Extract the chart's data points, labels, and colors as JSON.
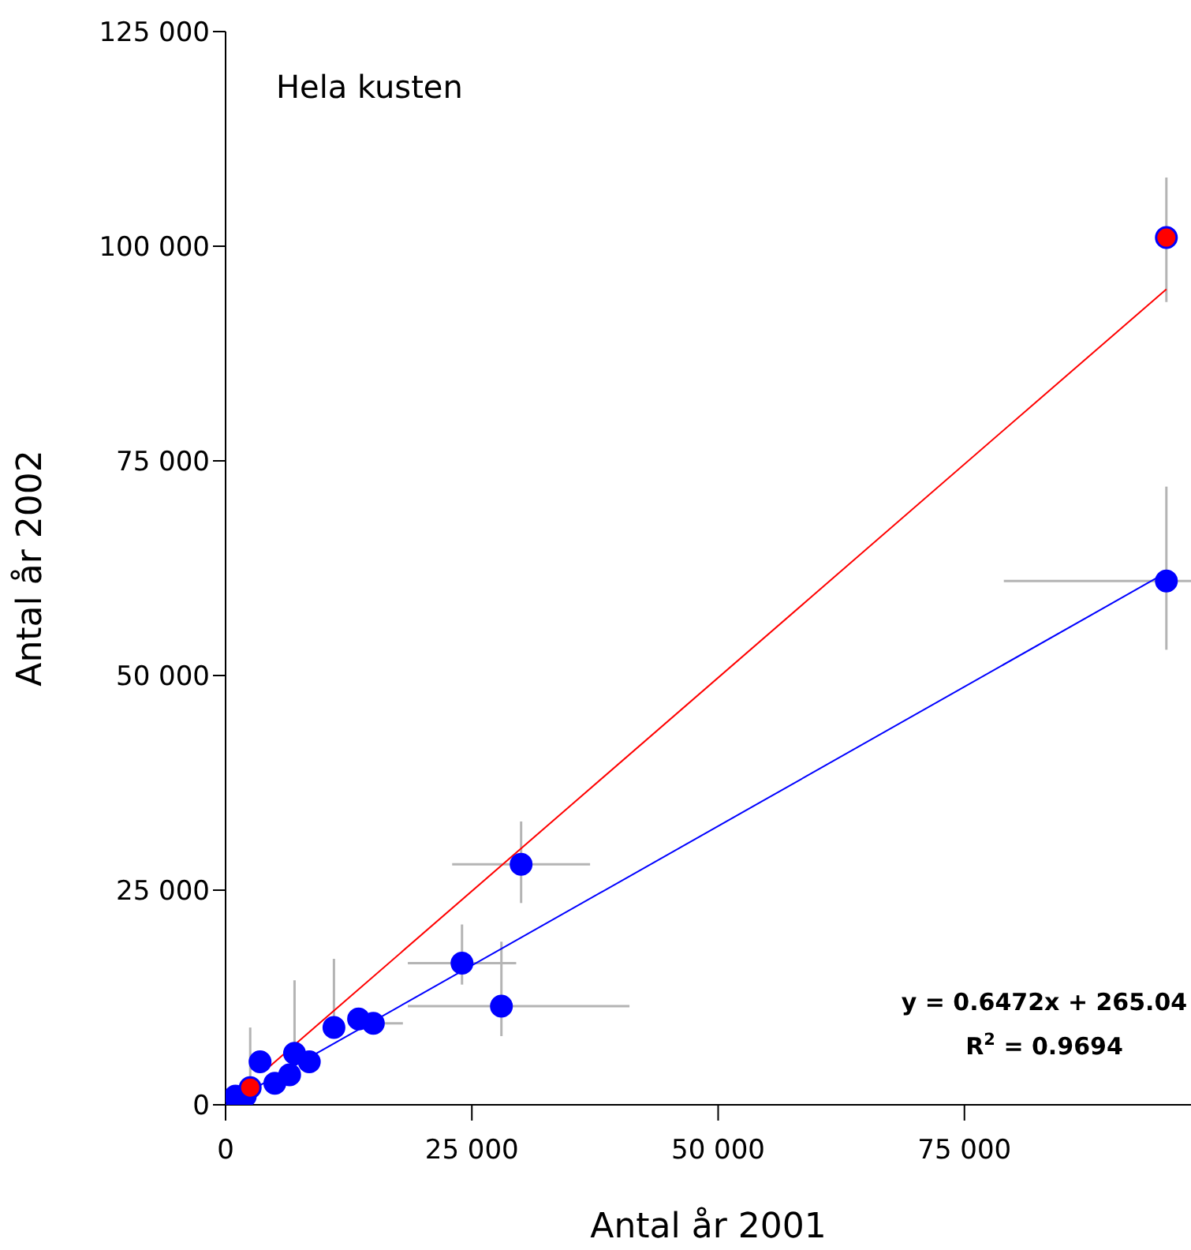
{
  "chart_data": {
    "type": "scatter",
    "title": "Hela kusten",
    "xlabel": "Antal år 2001",
    "ylabel": "Antal år 2002",
    "xlim": [
      0,
      98000
    ],
    "xticks": [
      {
        "value": 0,
        "label": "0"
      },
      {
        "value": 25000,
        "label": "25 000"
      },
      {
        "value": 50000,
        "label": "50 000"
      },
      {
        "value": 75000,
        "label": "75 000"
      }
    ],
    "ylim": [
      0,
      125000
    ],
    "yticks": [
      {
        "value": 0,
        "label": "0"
      },
      {
        "value": 25000,
        "label": "25 000"
      },
      {
        "value": 50000,
        "label": "50 000"
      },
      {
        "value": 75000,
        "label": "75 000"
      },
      {
        "value": 100000,
        "label": "100 000"
      },
      {
        "value": 125000,
        "label": "125 000"
      }
    ],
    "marker": "circle",
    "series": [
      {
        "type": "line",
        "color": "#ff0000",
        "marker": "none",
        "x": [
          4000,
          95500
        ],
        "values": [
          4000,
          95000
        ]
      },
      {
        "type": "line",
        "color": "#0000ff",
        "marker": "none",
        "x": [
          0,
          95500
        ],
        "values": [
          0,
          62000
        ]
      },
      {
        "color": "#0000ff",
        "x": [
          95500,
          30000,
          24000,
          28000,
          15000,
          13500,
          11000,
          7000,
          8500,
          6500,
          5000,
          3500,
          1000,
          2000
        ],
        "values": [
          61000,
          28000,
          16500,
          11500,
          9500,
          10000,
          9000,
          6000,
          5000,
          3500,
          2500,
          5000,
          1000,
          1000
        ],
        "errors": [
          [
            53000,
            72000
          ],
          [
            23500,
            33000
          ],
          [
            14000,
            21000
          ],
          [
            8000,
            19000
          ],
          null,
          null,
          [
            9000,
            17000
          ],
          [
            6000,
            14500
          ],
          null,
          null,
          null,
          null,
          null,
          null
        ],
        "xerrors": [
          [
            79000,
            98000
          ],
          [
            23000,
            37000
          ],
          [
            18500,
            29500
          ],
          [
            18500,
            41000
          ],
          [
            13000,
            18000
          ],
          null,
          null,
          null,
          null,
          null,
          null,
          null,
          null,
          null
        ]
      },
      {
        "color": "#ff0000",
        "x": [
          95500,
          2500
        ],
        "values": [
          101000,
          2000
        ],
        "errors": [
          [
            93500,
            108000
          ],
          [
            1000,
            9000
          ]
        ]
      }
    ],
    "annotations": [
      "y = 0.6472x + 265.04",
      "R$^{2}$ = 0.9694"
    ]
  }
}
